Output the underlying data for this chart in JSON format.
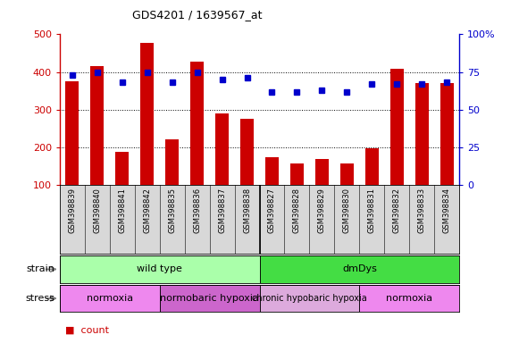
{
  "title": "GDS4201 / 1639567_at",
  "samples": [
    "GSM398839",
    "GSM398840",
    "GSM398841",
    "GSM398842",
    "GSM398835",
    "GSM398836",
    "GSM398837",
    "GSM398838",
    "GSM398827",
    "GSM398828",
    "GSM398829",
    "GSM398830",
    "GSM398831",
    "GSM398832",
    "GSM398833",
    "GSM398834"
  ],
  "counts": [
    375,
    415,
    188,
    478,
    222,
    428,
    290,
    275,
    175,
    158,
    170,
    158,
    198,
    408,
    370,
    370
  ],
  "percentile_ranks": [
    73,
    75,
    68,
    75,
    68,
    75,
    70,
    71,
    62,
    62,
    63,
    62,
    67,
    67,
    67,
    68
  ],
  "bar_color": "#cc0000",
  "dot_color": "#0000cc",
  "ylim_left": [
    100,
    500
  ],
  "ylim_right": [
    0,
    100
  ],
  "yticks_left": [
    100,
    200,
    300,
    400,
    500
  ],
  "yticks_right": [
    0,
    25,
    50,
    75,
    100
  ],
  "yticklabels_right": [
    "0",
    "25",
    "50",
    "75",
    "100%"
  ],
  "strain_groups": [
    {
      "label": "wild type",
      "start": 0,
      "end": 8,
      "color": "#aaffaa"
    },
    {
      "label": "dmDys",
      "start": 8,
      "end": 16,
      "color": "#44dd44"
    }
  ],
  "stress_groups": [
    {
      "label": "normoxia",
      "start": 0,
      "end": 4,
      "color": "#ee88ee"
    },
    {
      "label": "normobaric hypoxia",
      "start": 4,
      "end": 8,
      "color": "#cc66cc"
    },
    {
      "label": "chronic hypobaric hypoxia",
      "start": 8,
      "end": 12,
      "color": "#ddaadd"
    },
    {
      "label": "normoxia",
      "start": 12,
      "end": 16,
      "color": "#ee88ee"
    }
  ],
  "bg_color": "#d8d8d8",
  "left_axis_color": "#cc0000",
  "right_axis_color": "#0000cc",
  "grid_color": "black",
  "grid_yticks": [
    200,
    300,
    400
  ]
}
